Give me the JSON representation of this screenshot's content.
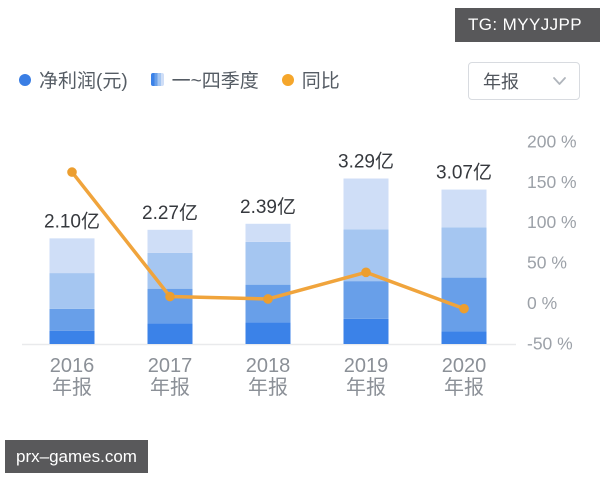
{
  "badge": {
    "text": "TG: MYYJJPP"
  },
  "watermark": {
    "text": "prx–games.com"
  },
  "legend": {
    "items": [
      {
        "label": "净利润(元)",
        "color": "#3a7ee4",
        "icon": "circle"
      },
      {
        "label": "一~四季度",
        "icon": "gradient-square"
      },
      {
        "label": "同比",
        "color": "#f5a62b",
        "icon": "circle"
      }
    ]
  },
  "dropdown": {
    "value": "年报"
  },
  "chart_data": {
    "type": "bar",
    "subtype": "stacked-bar-with-line-overlay",
    "legend_entries": [
      "净利润(元)",
      "一~四季度",
      "同比"
    ],
    "bar_unit": "亿",
    "quarter_colors": [
      "#3b82e8",
      "#689fe9",
      "#a5c6f1",
      "#cfdef7"
    ],
    "line_color": "#f0a43c",
    "point_color": "#ec9e2f",
    "bars": [
      {
        "year": "2016",
        "period": "年报",
        "total": 2.1,
        "total_label": "2.10亿",
        "quarters": [
          0.26,
          0.44,
          0.71,
          0.69
        ],
        "yoy_pct": 162
      },
      {
        "year": "2017",
        "period": "年报",
        "total": 2.27,
        "total_label": "2.27亿",
        "quarters": [
          0.41,
          0.69,
          0.71,
          0.46
        ],
        "yoy_pct": 8
      },
      {
        "year": "2018",
        "period": "年报",
        "total": 2.39,
        "total_label": "2.39亿",
        "quarters": [
          0.43,
          0.75,
          0.85,
          0.36
        ],
        "yoy_pct": 5
      },
      {
        "year": "2019",
        "period": "年报",
        "total": 3.29,
        "total_label": "3.29亿",
        "quarters": [
          0.5,
          0.75,
          1.03,
          1.01
        ],
        "yoy_pct": 38
      },
      {
        "year": "2020",
        "period": "年报",
        "total": 3.07,
        "total_label": "3.07亿",
        "quarters": [
          0.25,
          1.07,
          1.0,
          0.75
        ],
        "yoy_pct": -7
      }
    ],
    "right_axis": {
      "unit": "%",
      "range": [
        -50,
        225
      ],
      "position": "right",
      "ticks": [
        {
          "label": "200 %",
          "value": 200
        },
        {
          "label": "150 %",
          "value": 150
        },
        {
          "label": "100 %",
          "value": 100
        },
        {
          "label": "50 %",
          "value": 50
        },
        {
          "label": "0 %",
          "value": 0
        },
        {
          "label": "-50 %",
          "value": -50
        }
      ]
    },
    "grid": false,
    "x_axis_line": true
  }
}
